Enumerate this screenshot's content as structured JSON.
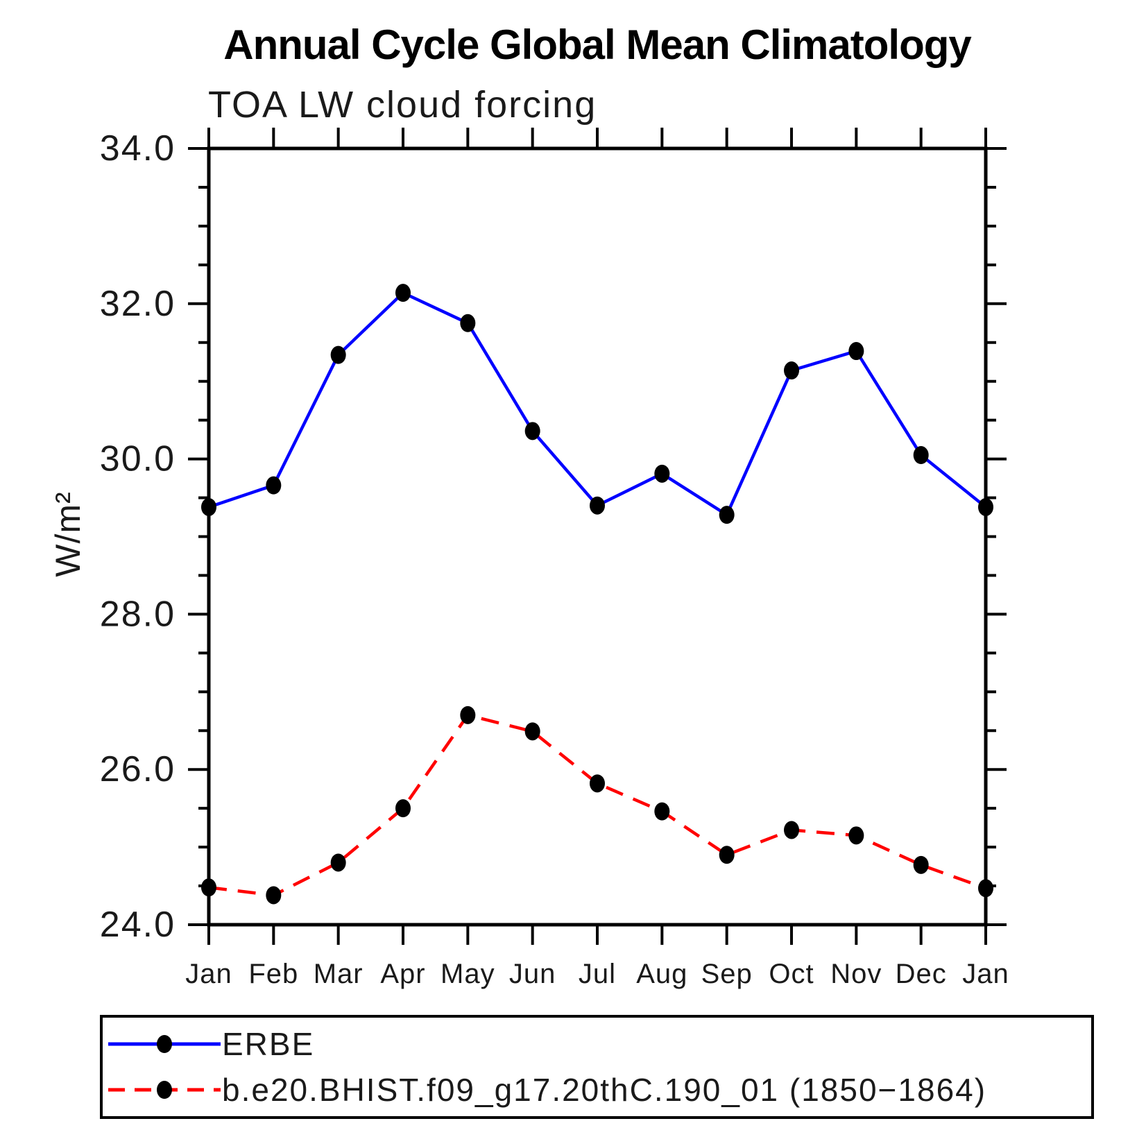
{
  "chart_data": {
    "type": "line",
    "title": "Annual Cycle Global Mean Climatology",
    "subtitle": "TOA LW cloud forcing",
    "xlabel": "",
    "ylabel": "W/m²",
    "ylim": [
      24.0,
      34.0
    ],
    "y_major_ticks": [
      24.0,
      26.0,
      28.0,
      30.0,
      32.0,
      34.0
    ],
    "y_tick_labels": [
      "24.0",
      "26.0",
      "28.0",
      "30.0",
      "32.0",
      "34.0"
    ],
    "y_minor_step": 0.5,
    "grid": false,
    "legend_position": "bottom",
    "categories": [
      "Jan",
      "Feb",
      "Mar",
      "Apr",
      "May",
      "Jun",
      "Jul",
      "Aug",
      "Sep",
      "Oct",
      "Nov",
      "Dec",
      "Jan"
    ],
    "series": [
      {
        "name": "ERBE",
        "style": "solid",
        "color": "#0000ff",
        "marker_color": "#000000",
        "values": [
          29.38,
          29.66,
          31.34,
          32.14,
          31.75,
          30.36,
          29.4,
          29.81,
          29.28,
          31.14,
          31.39,
          30.05,
          29.38
        ]
      },
      {
        "name": "b.e20.BHIST.f09_g17.20thC.190_01 (1850−1864)",
        "style": "dashed",
        "color": "#ff0000",
        "marker_color": "#000000",
        "values": [
          24.48,
          24.38,
          24.8,
          25.5,
          26.7,
          26.49,
          25.82,
          25.46,
          24.9,
          25.22,
          25.15,
          24.77,
          24.47
        ]
      }
    ],
    "axis_color": "#000000"
  }
}
